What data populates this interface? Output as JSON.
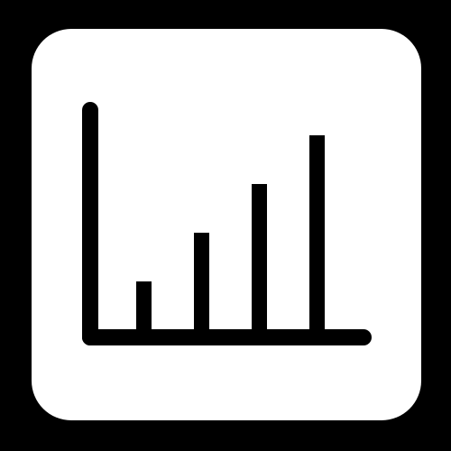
{
  "icon": {
    "name": "bar-chart-icon",
    "colors": {
      "outer": "#000000",
      "frame": "#ffffff",
      "frame_border": "#000000",
      "glyph": "#000000"
    },
    "bars": [
      {
        "level": 1
      },
      {
        "level": 2
      },
      {
        "level": 3
      },
      {
        "level": 4
      }
    ]
  }
}
